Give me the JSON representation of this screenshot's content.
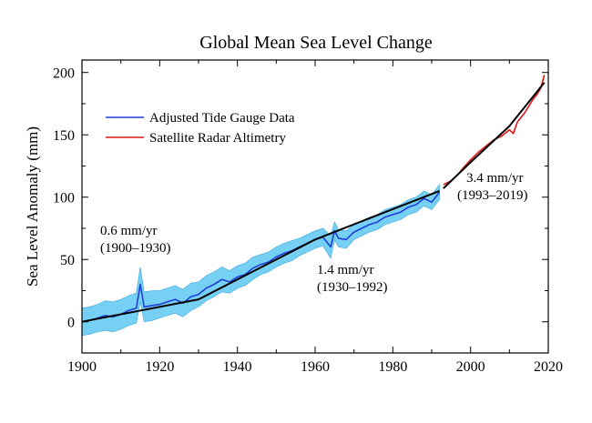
{
  "chart_data": {
    "type": "line",
    "title": "Global Mean Sea Level Change",
    "xlabel": "",
    "ylabel": "Sea Level Anomaly (mm)",
    "xlim": [
      1900,
      2020
    ],
    "ylim": [
      -25,
      210
    ],
    "x_ticks": [
      1900,
      1920,
      1940,
      1960,
      1980,
      2000,
      2020
    ],
    "y_ticks": [
      0,
      50,
      100,
      150,
      200
    ],
    "legend": {
      "placement": "upper-left",
      "entries": [
        {
          "label": "Adjusted Tide Gauge Data",
          "color": "#1f3fd8"
        },
        {
          "label": "Satellite Radar Altimetry",
          "color": "#e01818"
        }
      ]
    },
    "colors": {
      "tide_gauge": "#1f3fd8",
      "uncertainty_band": "#5ec8f2",
      "satellite": "#e01818",
      "trend": "#000000"
    },
    "series": [
      {
        "name": "Adjusted Tide Gauge Data",
        "x": [
          1900,
          1902,
          1904,
          1906,
          1908,
          1910,
          1912,
          1914,
          1915,
          1916,
          1918,
          1920,
          1922,
          1924,
          1926,
          1928,
          1930,
          1932,
          1934,
          1936,
          1938,
          1940,
          1942,
          1944,
          1946,
          1948,
          1950,
          1952,
          1954,
          1956,
          1958,
          1960,
          1962,
          1964,
          1965,
          1966,
          1968,
          1970,
          1972,
          1974,
          1976,
          1978,
          1980,
          1982,
          1984,
          1986,
          1988,
          1990,
          1992
        ],
        "y": [
          0,
          1,
          3,
          5,
          4,
          6,
          9,
          11,
          30,
          12,
          13,
          14,
          16,
          18,
          15,
          20,
          22,
          27,
          30,
          34,
          32,
          36,
          38,
          43,
          46,
          48,
          52,
          55,
          57,
          60,
          63,
          66,
          68,
          60,
          73,
          67,
          66,
          72,
          75,
          78,
          80,
          84,
          86,
          88,
          92,
          94,
          99,
          96,
          104
        ],
        "band": [
          11,
          11,
          11,
          12,
          12,
          12,
          12,
          12,
          14,
          12,
          12,
          11,
          11,
          11,
          11,
          11,
          10,
          10,
          10,
          10,
          9,
          9,
          9,
          9,
          8,
          8,
          8,
          8,
          8,
          7,
          7,
          7,
          7,
          9,
          7,
          7,
          7,
          6,
          6,
          6,
          6,
          6,
          6,
          6,
          6,
          6,
          6,
          6,
          6
        ]
      },
      {
        "name": "Satellite Radar Altimetry",
        "x": [
          1993,
          1995,
          1997,
          1998,
          2000,
          2002,
          2004,
          2006,
          2008,
          2010,
          2011,
          2012,
          2014,
          2016,
          2017,
          2018,
          2019
        ],
        "y": [
          110,
          113,
          119,
          123,
          130,
          136,
          141,
          146,
          149,
          154,
          151,
          160,
          168,
          178,
          182,
          187,
          198
        ]
      }
    ],
    "trends": [
      {
        "period": "1900–1930",
        "rate": "0.6 mm/yr",
        "x": [
          1900,
          1930
        ],
        "y": [
          0,
          18
        ]
      },
      {
        "period": "1930–1992",
        "rate": "1.4 mm/yr",
        "x": [
          1930,
          1960,
          1992
        ],
        "y": [
          18,
          66,
          105
        ]
      },
      {
        "period": "1993–2019",
        "rate": "3.4 mm/yr",
        "x": [
          1993,
          2000,
          2010,
          2019
        ],
        "y": [
          107,
          128,
          157,
          192
        ]
      }
    ],
    "annotations": [
      {
        "line1": "0.6 mm/yr",
        "line2": "(1900–1930)"
      },
      {
        "line1": "1.4 mm/yr",
        "line2": "(1930–1992)"
      },
      {
        "line1": "3.4 mm/yr",
        "line2": "(1993–2019)"
      }
    ]
  }
}
